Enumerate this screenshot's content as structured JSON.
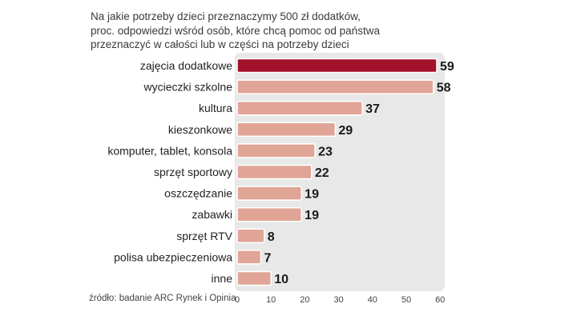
{
  "chart_data": {
    "type": "bar",
    "orientation": "horizontal",
    "title_lines": [
      "Na jakie potrzeby dzieci przeznaczymy 500 zł dodatków,",
      "proc. odpowiedzi wśród osób, które chcą pomoc od państwa",
      "przeznaczyć w całości lub w części na potrzeby dzieci"
    ],
    "categories": [
      "zajęcia dodatkowe",
      "wycieczki szkolne",
      "kultura",
      "kieszonkowe",
      "komputer, tablet, konsola",
      "sprzęt sportowy",
      "oszczędzanie",
      "zabawki",
      "sprzęt RTV",
      "polisa ubezpieczeniowa",
      "inne"
    ],
    "values": [
      59,
      58,
      37,
      29,
      23,
      22,
      19,
      19,
      8,
      7,
      10
    ],
    "highlight_index": 0,
    "xlim": [
      0,
      60
    ],
    "xticks": [
      0,
      10,
      20,
      30,
      40,
      50,
      60
    ],
    "xlabel": "",
    "ylabel": "",
    "grid": false,
    "source": "źródło: badanie ARC Rynek i Opinia",
    "colors": {
      "highlight": "#a4112a",
      "bar": "#e0a596",
      "panel": "#e8e8e8"
    }
  }
}
